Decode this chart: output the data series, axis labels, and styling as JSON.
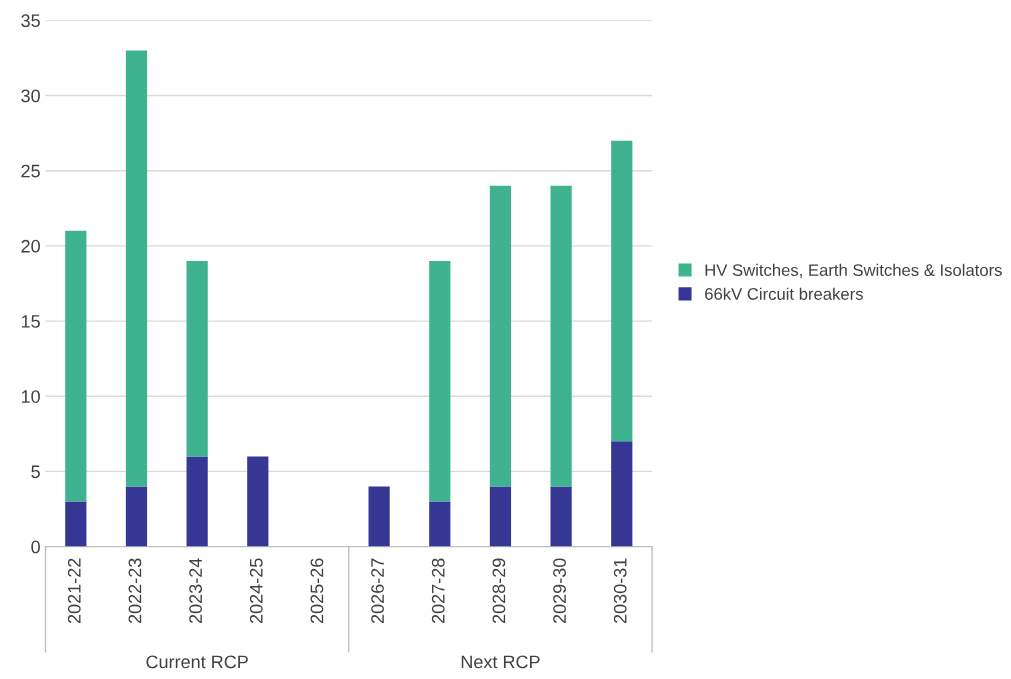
{
  "chart_data": {
    "type": "bar",
    "stacked": true,
    "categories": [
      "2021-22",
      "2022-23",
      "2023-24",
      "2024-25",
      "2025-26",
      "2026-27",
      "2027-28",
      "2028-29",
      "2029-30",
      "2030-31"
    ],
    "series": [
      {
        "name": "66kV Circuit breakers",
        "color": "#363795",
        "values": [
          3,
          4,
          6,
          6,
          0,
          4,
          3,
          4,
          4,
          7
        ]
      },
      {
        "name": "HV Switches, Earth Switches & Isolators",
        "color": "#3fb28f",
        "values": [
          18,
          29,
          13,
          0,
          0,
          0,
          16,
          20,
          20,
          20
        ]
      }
    ],
    "ylim": [
      0,
      35
    ],
    "yticks": [
      0,
      5,
      10,
      15,
      20,
      25,
      30,
      35
    ],
    "grid": "y",
    "legend": "right",
    "annotations": [
      "Current RCP",
      "Next RCP"
    ]
  }
}
